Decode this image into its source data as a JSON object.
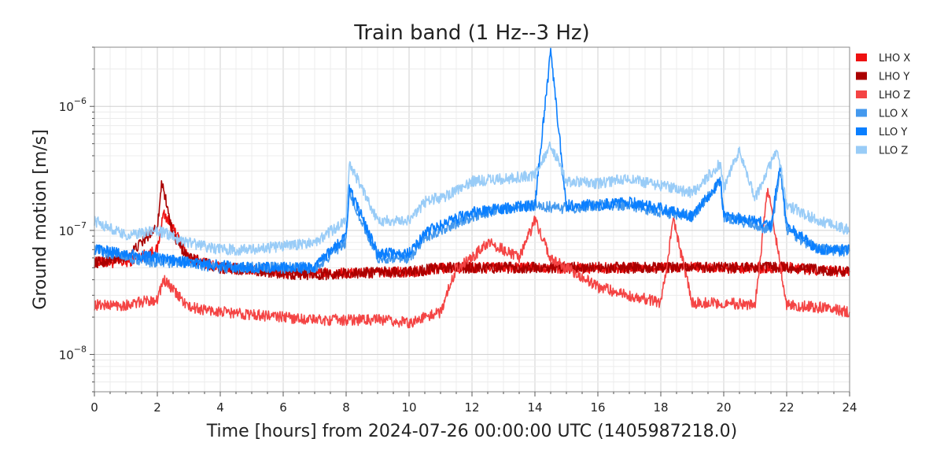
{
  "chart_data": {
    "type": "line",
    "title": "Train band (1 Hz--3 Hz)",
    "xlabel": "Time [hours] from 2024-07-26 00:00:00 UTC (1405987218.0)",
    "ylabel": "Ground motion [m/s]",
    "x_scale": "linear",
    "y_scale": "log",
    "xlim": [
      0,
      24
    ],
    "ylim": [
      5e-09,
      3e-06
    ],
    "x_ticks": [
      0,
      2,
      4,
      6,
      8,
      10,
      12,
      14,
      16,
      18,
      20,
      22,
      24
    ],
    "x_tick_labels": [
      "0",
      "2",
      "4",
      "6",
      "8",
      "10",
      "12",
      "14",
      "16",
      "18",
      "20",
      "22",
      "24"
    ],
    "y_ticks": [
      1e-08,
      1e-07,
      1e-06
    ],
    "y_tick_labels": [
      {
        "base": "10",
        "exp": "−8"
      },
      {
        "base": "10",
        "exp": "−7"
      },
      {
        "base": "10",
        "exp": "−6"
      }
    ],
    "grid": true,
    "legend_position": "right",
    "series": [
      {
        "name": "LHO X",
        "color": "#ee1111",
        "x": [
          0,
          1,
          2,
          2.2,
          3,
          4,
          5,
          6,
          7,
          8,
          9,
          10,
          11,
          12,
          13,
          14,
          14.5,
          15,
          16,
          17,
          18,
          19,
          20,
          21,
          22,
          23,
          24
        ],
        "y": [
          5.5e-08,
          5.5e-08,
          7e-08,
          1.4e-07,
          6e-08,
          5e-08,
          4.8e-08,
          4.6e-08,
          4.5e-08,
          4.5e-08,
          4.6e-08,
          4.6e-08,
          5e-08,
          5e-08,
          5e-08,
          5e-08,
          5e-08,
          5e-08,
          5e-08,
          5e-08,
          5e-08,
          5e-08,
          5e-08,
          5e-08,
          5e-08,
          4.8e-08,
          4.6e-08
        ]
      },
      {
        "name": "LHO Y",
        "color": "#aa0000",
        "x": [
          0,
          1,
          1.5,
          2,
          2.15,
          2.5,
          3,
          4,
          5,
          6,
          7,
          8,
          9,
          10,
          11,
          12,
          13,
          14,
          14.5,
          15,
          16,
          17,
          18,
          19,
          20,
          21,
          22,
          23,
          24
        ],
        "y": [
          5.5e-08,
          6e-08,
          8e-08,
          1.1e-07,
          2.5e-07,
          9e-08,
          6e-08,
          5e-08,
          4.8e-08,
          4.5e-08,
          4.4e-08,
          4.5e-08,
          4.6e-08,
          4.6e-08,
          5e-08,
          5e-08,
          5e-08,
          5e-08,
          5e-08,
          5e-08,
          5e-08,
          5e-08,
          5e-08,
          5e-08,
          5e-08,
          5e-08,
          5e-08,
          4.8e-08,
          4.7e-08
        ]
      },
      {
        "name": "LHO Z",
        "color": "#f44444",
        "x": [
          0,
          1,
          2,
          2.2,
          3,
          4,
          5,
          6,
          7,
          8,
          9,
          10,
          11,
          11.5,
          12,
          12.5,
          13,
          13.5,
          14,
          14.5,
          15,
          16,
          17,
          18,
          18.4,
          19,
          20,
          21,
          21.4,
          22,
          23,
          24
        ],
        "y": [
          2.5e-08,
          2.5e-08,
          2.8e-08,
          4e-08,
          2.4e-08,
          2.2e-08,
          2.1e-08,
          2e-08,
          1.9e-08,
          1.9e-08,
          1.9e-08,
          1.8e-08,
          2.2e-08,
          5e-08,
          6e-08,
          8e-08,
          7e-08,
          6e-08,
          1.2e-07,
          6e-08,
          5e-08,
          3.5e-08,
          3e-08,
          2.6e-08,
          1.2e-07,
          2.6e-08,
          2.6e-08,
          2.5e-08,
          2.2e-07,
          2.5e-08,
          2.4e-08,
          2.2e-08
        ]
      },
      {
        "name": "LLO X",
        "color": "#4499ee",
        "x": [
          0,
          1,
          2,
          3,
          4,
          5,
          6,
          7,
          8,
          8.1,
          9,
          10,
          10.6,
          11,
          12,
          13,
          14,
          15,
          16,
          17,
          18,
          19,
          19.9,
          20,
          21,
          21.5,
          21.8,
          22,
          23,
          24
        ],
        "y": [
          7e-08,
          6e-08,
          5.5e-08,
          5.5e-08,
          5e-08,
          5e-08,
          5e-08,
          5e-08,
          8e-08,
          2e-07,
          6e-08,
          6e-08,
          9e-08,
          1e-07,
          1.3e-07,
          1.5e-07,
          1.6e-07,
          1.5e-07,
          1.6e-07,
          1.6e-07,
          1.4e-07,
          1.3e-07,
          2.5e-07,
          1.3e-07,
          1.1e-07,
          1e-07,
          3e-07,
          1e-07,
          7e-08,
          6.8e-08
        ]
      },
      {
        "name": "LLO Y",
        "color": "#0a7fff",
        "x": [
          0,
          1,
          2,
          3,
          4,
          5,
          6,
          7,
          8,
          8.1,
          9,
          10,
          10.6,
          11,
          12,
          13,
          14,
          14.5,
          15,
          16,
          17,
          18,
          19,
          19.9,
          20,
          21,
          21.5,
          21.8,
          22,
          23,
          24
        ],
        "y": [
          7e-08,
          6.5e-08,
          6e-08,
          5.5e-08,
          5.2e-08,
          5e-08,
          5e-08,
          5e-08,
          9e-08,
          2.2e-07,
          6.5e-08,
          6.5e-08,
          1e-07,
          1.1e-07,
          1.4e-07,
          1.5e-07,
          1.6e-07,
          2.8e-06,
          1.6e-07,
          1.6e-07,
          1.7e-07,
          1.5e-07,
          1.3e-07,
          2.5e-07,
          1.3e-07,
          1.2e-07,
          1.1e-07,
          3.5e-07,
          1.1e-07,
          7e-08,
          7e-08
        ]
      },
      {
        "name": "LLO Z",
        "color": "#99ccf7",
        "x": [
          0,
          1,
          2,
          3,
          4,
          5,
          6,
          7,
          8,
          8.1,
          9,
          10,
          10.6,
          11,
          12,
          13,
          14,
          14.5,
          15,
          16,
          17,
          18,
          19,
          19.9,
          20,
          20.5,
          21,
          21.7,
          22,
          23,
          24
        ],
        "y": [
          1.2e-07,
          9e-08,
          1e-07,
          8e-08,
          7e-08,
          7e-08,
          7.5e-08,
          8e-08,
          1.2e-07,
          3.5e-07,
          1.2e-07,
          1.2e-07,
          1.8e-07,
          1.8e-07,
          2.5e-07,
          2.6e-07,
          2.8e-07,
          5e-07,
          2.5e-07,
          2.4e-07,
          2.6e-07,
          2.3e-07,
          2e-07,
          3.5e-07,
          2.2e-07,
          4.5e-07,
          1.8e-07,
          4.5e-07,
          1.6e-07,
          1.2e-07,
          1e-07
        ]
      }
    ]
  }
}
